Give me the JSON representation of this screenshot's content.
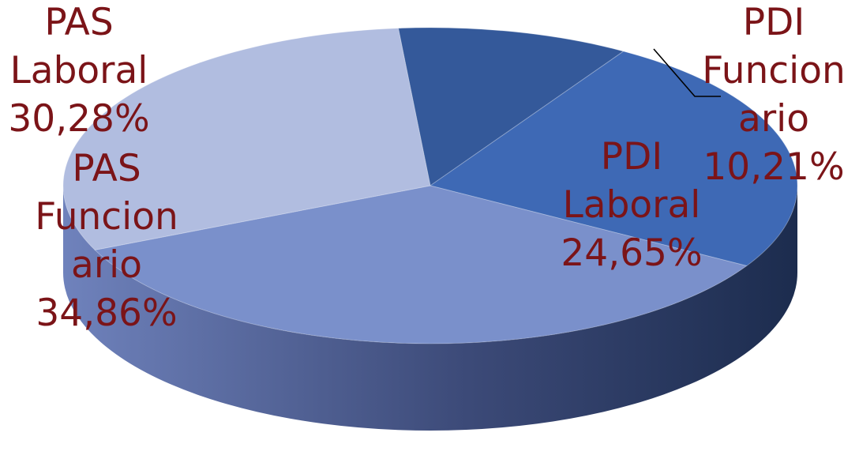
{
  "chart_data": {
    "type": "pie",
    "title": "",
    "slices": [
      {
        "line1": "PDI",
        "line2": "Funcion",
        "line3": "ario",
        "pct": "10,21%",
        "value": 10.21,
        "color": "#34599A"
      },
      {
        "line1": "PDI",
        "line2": "Laboral",
        "line3": "",
        "pct": "24,65%",
        "value": 24.65,
        "color": "#3E69B5"
      },
      {
        "line1": "PAS",
        "line2": "Funcion",
        "line3": "ario",
        "pct": "34,86%",
        "value": 34.86,
        "color": "#7A90CB"
      },
      {
        "line1": "PAS",
        "line2": "Laboral",
        "line3": "",
        "pct": "30,28%",
        "value": 30.28,
        "color": "#B1BDE0"
      }
    ],
    "label_color": "#7B1418",
    "legend": "none",
    "style": "3d"
  }
}
